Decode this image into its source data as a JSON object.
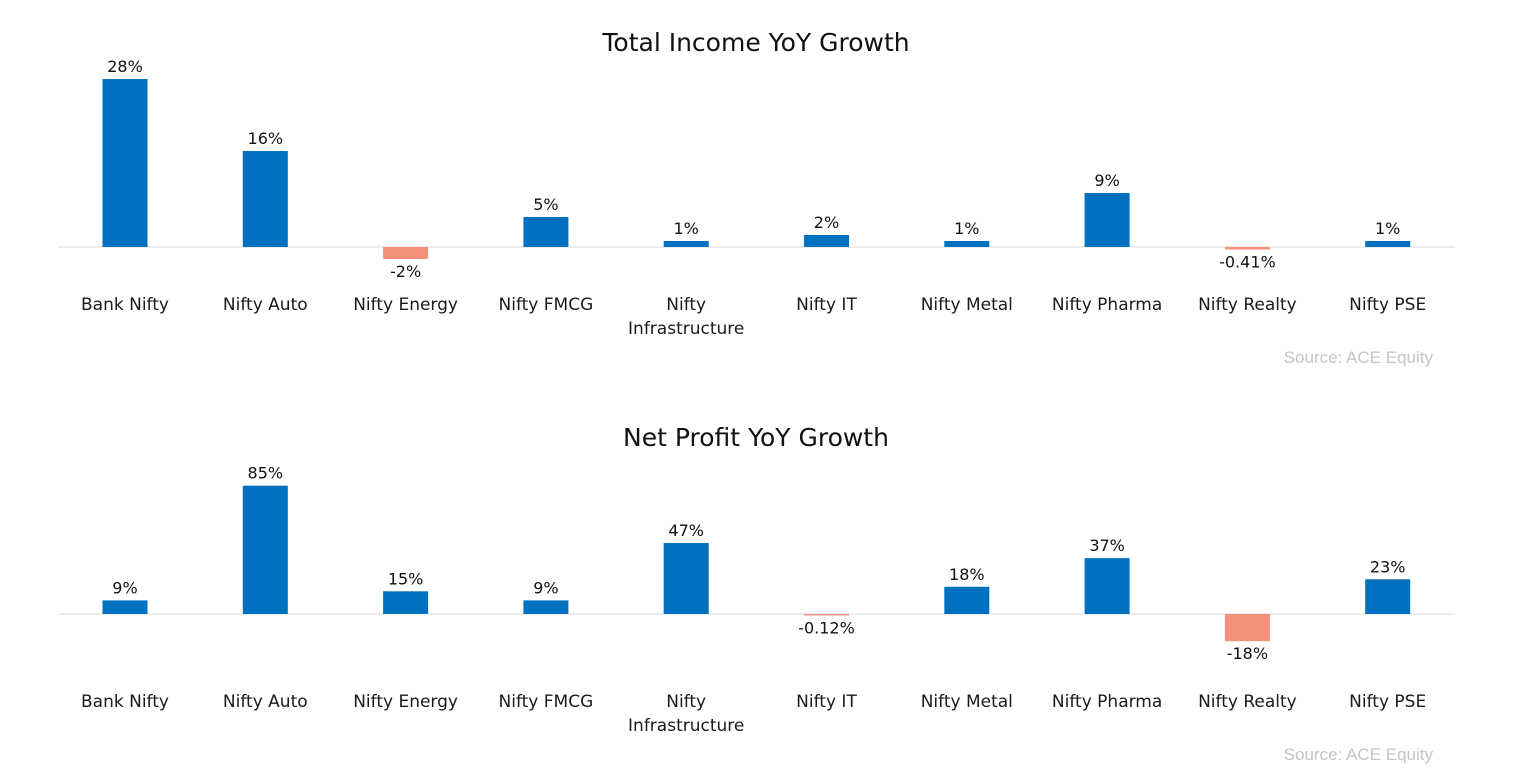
{
  "chart_data": [
    {
      "type": "bar",
      "title": "Total Income YoY Growth",
      "categories": [
        "Bank Nifty",
        "Nifty Auto",
        "Nifty Energy",
        "Nifty FMCG",
        "Nifty Infrastructure",
        "Nifty IT",
        "Nifty Metal",
        "Nifty Pharma",
        "Nifty Realty",
        "Nifty PSE"
      ],
      "values": [
        28,
        16,
        -2,
        5,
        1,
        2,
        1,
        9,
        -0.41,
        1
      ],
      "value_labels": [
        "28%",
        "16%",
        "-2%",
        "5%",
        "1%",
        "2%",
        "1%",
        "9%",
        "-0.41%",
        "1%"
      ],
      "unit": "%",
      "xlabel": "",
      "ylabel": "",
      "grid": false,
      "legend": "none",
      "source": "Source: ACE Equity",
      "colors": {
        "positive": "#0070c0",
        "negative": "#f4917b",
        "axis": "#d9d9d9"
      }
    },
    {
      "type": "bar",
      "title": "Net Profit YoY Growth",
      "categories": [
        "Bank Nifty",
        "Nifty Auto",
        "Nifty Energy",
        "Nifty FMCG",
        "Nifty Infrastructure",
        "Nifty IT",
        "Nifty Metal",
        "Nifty Pharma",
        "Nifty Realty",
        "Nifty PSE"
      ],
      "values": [
        9,
        85,
        15,
        9,
        47,
        -0.12,
        18,
        37,
        -18,
        23
      ],
      "value_labels": [
        "9%",
        "85%",
        "15%",
        "9%",
        "47%",
        "-0.12%",
        "18%",
        "37%",
        "-18%",
        "23%"
      ],
      "unit": "%",
      "xlabel": "",
      "ylabel": "",
      "grid": false,
      "legend": "none",
      "source": "Source: ACE Equity",
      "colors": {
        "positive": "#0070c0",
        "negative": "#f4917b",
        "axis": "#d9d9d9"
      }
    }
  ]
}
